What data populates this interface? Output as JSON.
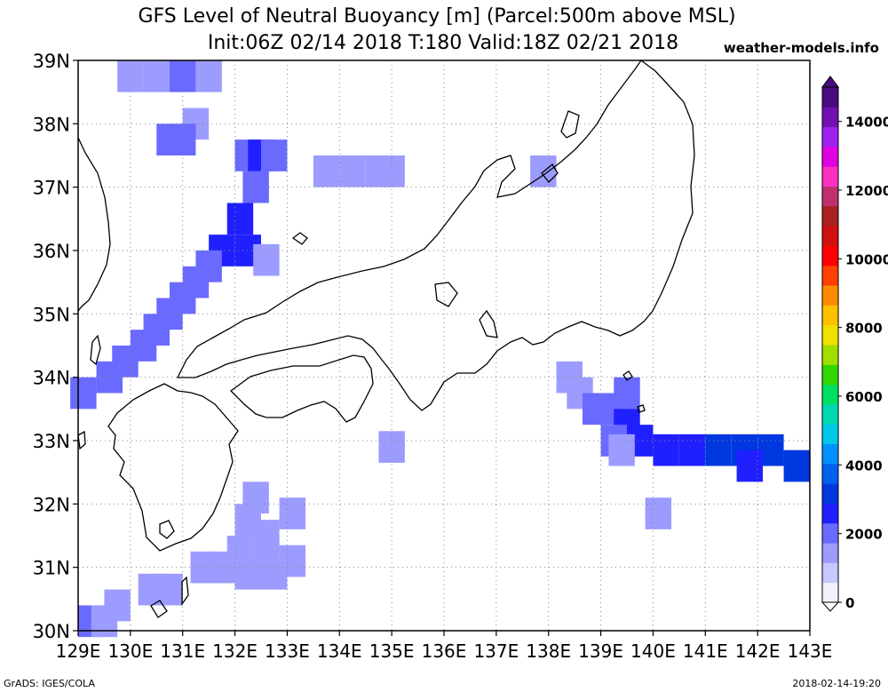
{
  "header": {
    "title_line1": "GFS Level of Neutral Buoyancy [m] (Parcel:500m above MSL)",
    "title_line2": "Init:06Z 02/14 2018 T:180 Valid:18Z 02/21 2018",
    "site": "weather-models.info"
  },
  "footer": {
    "credit": "GrADS: IGES/COLA",
    "timestamp": "2018-02-14-19:20"
  },
  "map": {
    "lon_range": [
      129,
      143
    ],
    "lat_range": [
      30,
      39
    ],
    "x_ticks": [
      "129E",
      "130E",
      "131E",
      "132E",
      "133E",
      "134E",
      "135E",
      "136E",
      "137E",
      "138E",
      "139E",
      "140E",
      "141E",
      "142E",
      "143E"
    ],
    "y_ticks": [
      "30N",
      "31N",
      "32N",
      "33N",
      "34N",
      "35N",
      "36N",
      "37N",
      "38N",
      "39N"
    ],
    "gridlines": "dotted",
    "coastline_color": "#000000"
  },
  "colorbar": {
    "labels": [
      "0",
      "2000",
      "4000",
      "6000",
      "8000",
      "10000",
      "12000",
      "14000"
    ],
    "range": [
      0,
      15000
    ],
    "colors": [
      "#f2f2ff",
      "#c8c8ff",
      "#9c9cff",
      "#6a6aff",
      "#2020ff",
      "#0038e0",
      "#0060f0",
      "#0090ff",
      "#00c8e8",
      "#00d8b0",
      "#00e060",
      "#30d800",
      "#a0e000",
      "#f0e000",
      "#ffc000",
      "#ff8c00",
      "#ff4000",
      "#ff0000",
      "#d01010",
      "#a82020",
      "#c03070",
      "#ff30c0",
      "#e000e0",
      "#a020f0",
      "#7010b0",
      "#4a0a80"
    ]
  },
  "buoyancy_cells": [
    {
      "lon": 130.0,
      "lat": 38.75,
      "value": 1500
    },
    {
      "lon": 130.5,
      "lat": 38.75,
      "value": 1600
    },
    {
      "lon": 131.0,
      "lat": 38.75,
      "value": 1800
    },
    {
      "lon": 131.5,
      "lat": 38.75,
      "value": 1700
    },
    {
      "lon": 131.25,
      "lat": 38.0,
      "value": 1600
    },
    {
      "lon": 130.75,
      "lat": 37.75,
      "value": 2100
    },
    {
      "lon": 131.0,
      "lat": 37.75,
      "value": 2200
    },
    {
      "lon": 132.25,
      "lat": 37.5,
      "value": 2300
    },
    {
      "lon": 132.5,
      "lat": 37.5,
      "value": 2400
    },
    {
      "lon": 132.75,
      "lat": 37.5,
      "value": 2200
    },
    {
      "lon": 133.75,
      "lat": 37.25,
      "value": 1500
    },
    {
      "lon": 134.25,
      "lat": 37.25,
      "value": 1600
    },
    {
      "lon": 134.75,
      "lat": 37.25,
      "value": 1500
    },
    {
      "lon": 135.0,
      "lat": 37.25,
      "value": 1400
    },
    {
      "lon": 137.9,
      "lat": 37.25,
      "value": 1200
    },
    {
      "lon": 132.4,
      "lat": 37.0,
      "value": 2300
    },
    {
      "lon": 132.1,
      "lat": 36.5,
      "value": 2400
    },
    {
      "lon": 131.75,
      "lat": 36.0,
      "value": 2500
    },
    {
      "lon": 132.25,
      "lat": 36.0,
      "value": 2600
    },
    {
      "lon": 132.6,
      "lat": 35.85,
      "value": 1300
    },
    {
      "lon": 131.5,
      "lat": 35.75,
      "value": 2300
    },
    {
      "lon": 131.25,
      "lat": 35.5,
      "value": 2100
    },
    {
      "lon": 131.0,
      "lat": 35.25,
      "value": 2000
    },
    {
      "lon": 130.75,
      "lat": 35.0,
      "value": 2000
    },
    {
      "lon": 130.5,
      "lat": 34.75,
      "value": 2100
    },
    {
      "lon": 130.25,
      "lat": 34.5,
      "value": 2200
    },
    {
      "lon": 129.9,
      "lat": 34.25,
      "value": 2100
    },
    {
      "lon": 129.6,
      "lat": 34.0,
      "value": 2000
    },
    {
      "lon": 129.1,
      "lat": 33.75,
      "value": 2000
    },
    {
      "lon": 135.0,
      "lat": 32.9,
      "value": 1300
    },
    {
      "lon": 138.4,
      "lat": 34.0,
      "value": 1400
    },
    {
      "lon": 138.6,
      "lat": 33.75,
      "value": 1500
    },
    {
      "lon": 138.9,
      "lat": 33.5,
      "value": 1800
    },
    {
      "lon": 139.25,
      "lat": 33.5,
      "value": 2300
    },
    {
      "lon": 139.5,
      "lat": 33.75,
      "value": 1900
    },
    {
      "lon": 139.5,
      "lat": 33.25,
      "value": 2600
    },
    {
      "lon": 139.25,
      "lat": 33.0,
      "value": 2200
    },
    {
      "lon": 139.75,
      "lat": 33.0,
      "value": 2400
    },
    {
      "lon": 139.4,
      "lat": 32.85,
      "value": 1600
    },
    {
      "lon": 140.25,
      "lat": 32.85,
      "value": 2700
    },
    {
      "lon": 140.75,
      "lat": 32.85,
      "value": 2800
    },
    {
      "lon": 141.25,
      "lat": 32.85,
      "value": 2900
    },
    {
      "lon": 141.75,
      "lat": 32.85,
      "value": 3000
    },
    {
      "lon": 142.25,
      "lat": 32.85,
      "value": 2900
    },
    {
      "lon": 141.85,
      "lat": 32.6,
      "value": 2800
    },
    {
      "lon": 142.75,
      "lat": 32.6,
      "value": 2900
    },
    {
      "lon": 140.1,
      "lat": 31.85,
      "value": 1500
    },
    {
      "lon": 132.4,
      "lat": 32.1,
      "value": 1700
    },
    {
      "lon": 133.1,
      "lat": 31.85,
      "value": 1300
    },
    {
      "lon": 132.25,
      "lat": 31.75,
      "value": 1600
    },
    {
      "lon": 132.6,
      "lat": 31.5,
      "value": 1400
    },
    {
      "lon": 132.1,
      "lat": 31.25,
      "value": 1400
    },
    {
      "lon": 132.6,
      "lat": 31.25,
      "value": 1300
    },
    {
      "lon": 133.1,
      "lat": 31.1,
      "value": 1300
    },
    {
      "lon": 131.4,
      "lat": 31.0,
      "value": 1300
    },
    {
      "lon": 131.75,
      "lat": 31.0,
      "value": 1400
    },
    {
      "lon": 132.25,
      "lat": 30.9,
      "value": 1300
    },
    {
      "lon": 132.75,
      "lat": 30.9,
      "value": 1350
    },
    {
      "lon": 130.4,
      "lat": 30.65,
      "value": 1500
    },
    {
      "lon": 130.75,
      "lat": 30.65,
      "value": 1400
    },
    {
      "lon": 129.75,
      "lat": 30.4,
      "value": 1600
    },
    {
      "lon": 129.25,
      "lat": 30.15,
      "value": 1800
    },
    {
      "lon": 129.5,
      "lat": 30.15,
      "value": 1700
    }
  ]
}
